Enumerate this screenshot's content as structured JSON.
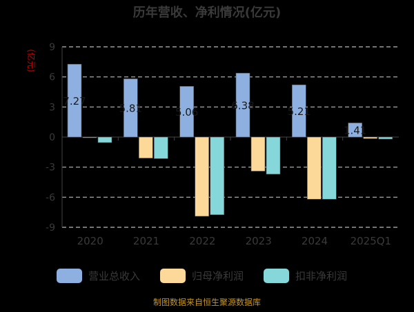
{
  "chart_data": {
    "type": "bar",
    "title": "历年营收、净利情况(亿元)",
    "ylabel": "(亿元)",
    "ylim": [
      -9,
      9
    ],
    "yticks": [
      9,
      6,
      3,
      0,
      -3,
      -6,
      -9
    ],
    "grid": true,
    "legend_position": "bottom",
    "categories": [
      "2020",
      "2021",
      "2022",
      "2023",
      "2024",
      "2025Q1"
    ],
    "series": [
      {
        "name": "营业总收入",
        "color": "#8eb0e0",
        "values": [
          7.27,
          5.81,
          5.06,
          6.38,
          5.21,
          1.41
        ],
        "labels": [
          "7.27",
          "5.81",
          "5.06",
          "6.38",
          "5.21",
          "1.41"
        ]
      },
      {
        "name": "归母净利润",
        "color": "#fdd999",
        "values": [
          -0.05,
          -2.1,
          -7.9,
          -3.4,
          -6.2,
          -0.15
        ]
      },
      {
        "name": "扣非净利润",
        "color": "#86d7d9",
        "values": [
          -0.55,
          -2.15,
          -7.75,
          -3.7,
          -6.2,
          -0.2
        ]
      }
    ]
  },
  "footer": {
    "source": "制图数据来自恒生聚源数据库"
  },
  "colors": {
    "background": "#000000",
    "title": "#3a3a3a",
    "axis_text": "#3a3a3a",
    "ylabel": "#cc0000",
    "source": "#c8961e",
    "grid": "#bbbbbb"
  }
}
